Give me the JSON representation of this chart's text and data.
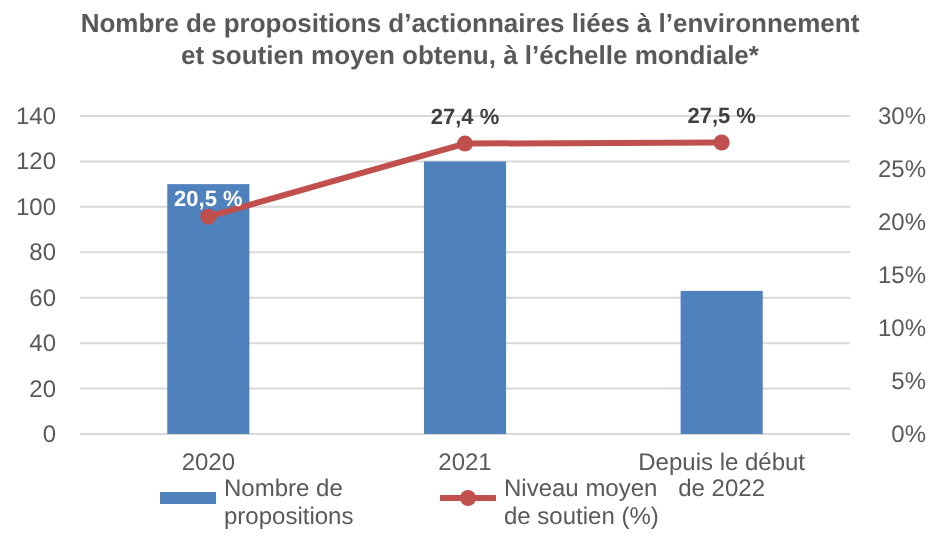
{
  "chart_data": {
    "type": "bar",
    "title": "Nombre de propositions d’actionnaires liées à l’environnement et soutien moyen obtenu, à l’échelle mondiale*",
    "categories": [
      "2020",
      "2021",
      "Depuis le début de 2022"
    ],
    "series": [
      {
        "name": "Nombre de propositions",
        "color": "#4f81bd",
        "values": [
          110,
          120,
          63
        ]
      },
      {
        "name": "Niveau moyen de soutien (%)",
        "type": "line",
        "axis": "y2",
        "color": "#c0504d",
        "marker": "circle",
        "values": [
          20.5,
          27.4,
          27.5
        ],
        "value_labels": [
          "20,5 %",
          "27,4 %",
          "27,5 %"
        ]
      }
    ],
    "ylim": [
      0,
      140
    ],
    "yticks": [
      0,
      20,
      40,
      60,
      80,
      100,
      120,
      140
    ],
    "y2lim": [
      0,
      30
    ],
    "y2ticks": [
      {
        "value": 0,
        "label": "0%"
      },
      {
        "value": 5,
        "label": "5%"
      },
      {
        "value": 10,
        "label": "10%"
      },
      {
        "value": 15,
        "label": "15%"
      },
      {
        "value": 20,
        "label": "20%"
      },
      {
        "value": 25,
        "label": "25%"
      },
      {
        "value": 30,
        "label": "30%"
      }
    ],
    "grid": "y",
    "legend": "bottom"
  }
}
